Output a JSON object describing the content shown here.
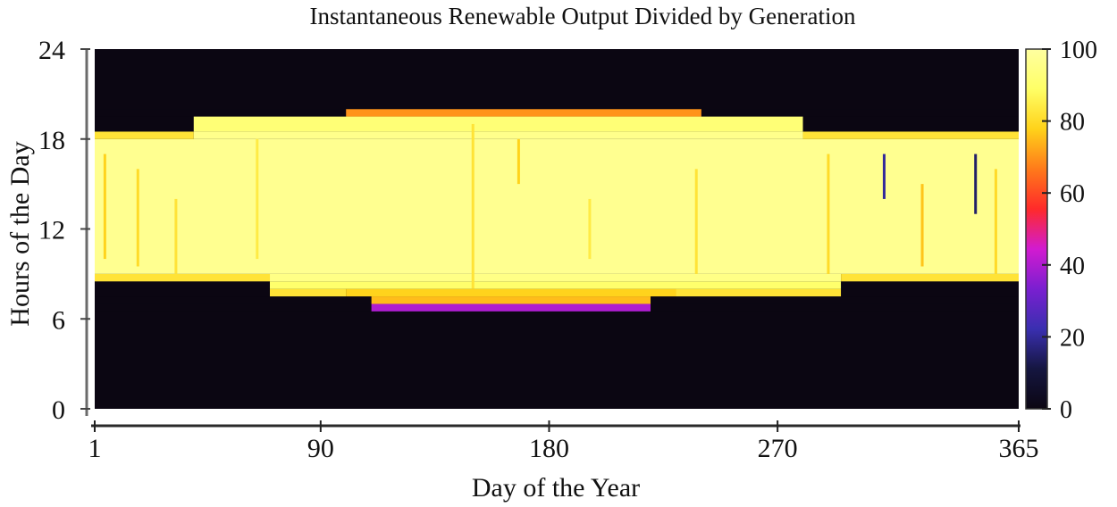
{
  "chart_data": {
    "type": "heatmap",
    "title": "Instantaneous Renewable Output Divided  by Generation",
    "xlabel": "Day of the Year",
    "ylabel": "Hours of the Day",
    "xlim": [
      1,
      365
    ],
    "ylim": [
      0,
      24
    ],
    "x_ticks": [
      1,
      90,
      180,
      270,
      365
    ],
    "y_ticks": [
      0,
      6,
      12,
      18,
      24
    ],
    "colorbar": {
      "range": [
        0,
        100
      ],
      "ticks": [
        0,
        20,
        40,
        60,
        80,
        100
      ],
      "colors": [
        "#0b0612",
        "#151640",
        "#3a2fb0",
        "#7a1fd0",
        "#d21bd0",
        "#ff2a2a",
        "#ff7a1a",
        "#ffd21a",
        "#ffff66",
        "#ffffa0"
      ]
    },
    "rows": [
      {
        "hours": [
          0,
          6.5
        ],
        "segments": [
          {
            "days": [
              1,
              365
            ],
            "value": 0
          }
        ]
      },
      {
        "hours": [
          6.5,
          7.0
        ],
        "segments": [
          {
            "days": [
              1,
              110
            ],
            "value": 0
          },
          {
            "days": [
              110,
              220
            ],
            "value": 40
          },
          {
            "days": [
              220,
              365
            ],
            "value": 0
          }
        ]
      },
      {
        "hours": [
          7.0,
          7.5
        ],
        "segments": [
          {
            "days": [
              1,
              110
            ],
            "value": 0
          },
          {
            "days": [
              110,
              220
            ],
            "value": 75
          },
          {
            "days": [
              220,
              365
            ],
            "value": 0
          }
        ]
      },
      {
        "hours": [
          7.5,
          8.0
        ],
        "segments": [
          {
            "days": [
              1,
              70
            ],
            "value": 0
          },
          {
            "days": [
              70,
              100
            ],
            "value": 82
          },
          {
            "days": [
              100,
              230
            ],
            "value": 78
          },
          {
            "days": [
              230,
              295
            ],
            "value": 82
          },
          {
            "days": [
              295,
              365
            ],
            "value": 0
          }
        ]
      },
      {
        "hours": [
          8.0,
          8.5
        ],
        "segments": [
          {
            "days": [
              1,
              70
            ],
            "value": 0
          },
          {
            "days": [
              70,
              295
            ],
            "value": 90
          },
          {
            "days": [
              295,
              365
            ],
            "value": 0
          }
        ]
      },
      {
        "hours": [
          8.5,
          9.0
        ],
        "segments": [
          {
            "days": [
              1,
              70
            ],
            "value": 82
          },
          {
            "days": [
              70,
              295
            ],
            "value": 95
          },
          {
            "days": [
              295,
              365
            ],
            "value": 82
          }
        ]
      },
      {
        "hours": [
          9.0,
          18.0
        ],
        "segments": [
          {
            "days": [
              1,
              365
            ],
            "value": 97
          }
        ]
      },
      {
        "hours": [
          18.0,
          18.5
        ],
        "segments": [
          {
            "days": [
              1,
              40
            ],
            "value": 82
          },
          {
            "days": [
              40,
              280
            ],
            "value": 96
          },
          {
            "days": [
              280,
              365
            ],
            "value": 82
          }
        ]
      },
      {
        "hours": [
          18.5,
          19.5
        ],
        "segments": [
          {
            "days": [
              1,
              40
            ],
            "value": 0
          },
          {
            "days": [
              40,
              280
            ],
            "value": 92
          },
          {
            "days": [
              280,
              365
            ],
            "value": 0
          }
        ]
      },
      {
        "hours": [
          19.5,
          20.0
        ],
        "segments": [
          {
            "days": [
              1,
              100
            ],
            "value": 0
          },
          {
            "days": [
              100,
              240
            ],
            "value": 70
          },
          {
            "days": [
              240,
              365
            ],
            "value": 0
          }
        ]
      },
      {
        "hours": [
          20.0,
          24.0
        ],
        "segments": [
          {
            "days": [
              1,
              365
            ],
            "value": 0
          }
        ]
      }
    ],
    "dips": [
      {
        "day": 5,
        "hours": [
          10,
          17
        ],
        "value": 78
      },
      {
        "day": 18,
        "hours": [
          9.5,
          16
        ],
        "value": 80
      },
      {
        "day": 33,
        "hours": [
          9,
          14
        ],
        "value": 82
      },
      {
        "day": 65,
        "hours": [
          10,
          18
        ],
        "value": 84
      },
      {
        "day": 150,
        "hours": [
          8,
          19
        ],
        "value": 82
      },
      {
        "day": 168,
        "hours": [
          15,
          18
        ],
        "value": 78
      },
      {
        "day": 196,
        "hours": [
          10,
          14
        ],
        "value": 84
      },
      {
        "day": 238,
        "hours": [
          9,
          16
        ],
        "value": 82
      },
      {
        "day": 290,
        "hours": [
          9,
          17
        ],
        "value": 80
      },
      {
        "day": 312,
        "hours": [
          14,
          17
        ],
        "value": 20
      },
      {
        "day": 327,
        "hours": [
          9.5,
          15
        ],
        "value": 76
      },
      {
        "day": 348,
        "hours": [
          13,
          17
        ],
        "value": 15
      },
      {
        "day": 356,
        "hours": [
          9,
          16
        ],
        "value": 80
      }
    ]
  }
}
